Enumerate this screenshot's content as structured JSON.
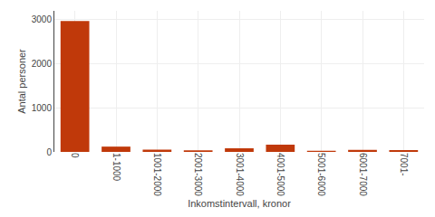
{
  "chart_data": {
    "type": "bar",
    "categories": [
      "0",
      "1-1000",
      "1001-2000",
      "2001-3000",
      "3001-4000",
      "4001-5000",
      "5001-6000",
      "6001-7000",
      "7001-"
    ],
    "values": [
      2970,
      120,
      52,
      36,
      82,
      165,
      24,
      46,
      40
    ],
    "color": "#c0390a",
    "xlabel": "Inkomstintervall, kronor",
    "ylabel": "Antal personer",
    "ylim": [
      0,
      3200
    ],
    "yticks": [
      0,
      1000,
      2000,
      3000
    ],
    "grid": true
  }
}
